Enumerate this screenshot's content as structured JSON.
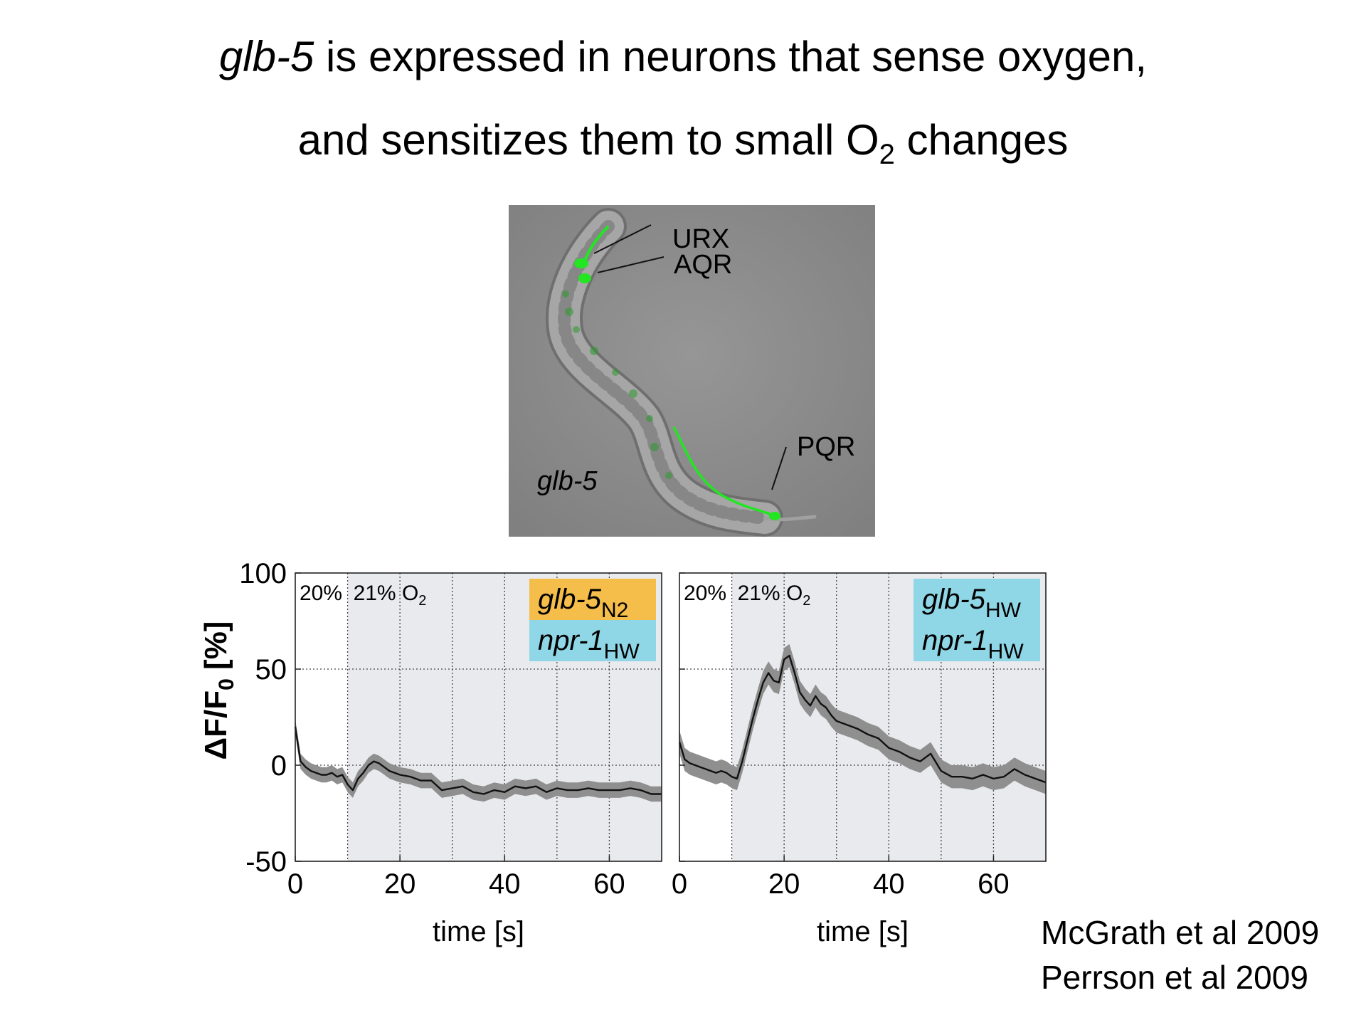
{
  "title": {
    "line1_italic": "glb-5",
    "line1_rest": " is expressed in neurons that sense oxygen,",
    "line2_a": "and sensitizes them to small O",
    "line2_sub": "2",
    "line2_b": " changes"
  },
  "micrograph": {
    "labels": {
      "urx": "URX",
      "aqr": "AQR",
      "pqr": "PQR",
      "gene": "glb-5"
    }
  },
  "references": [
    "McGrath et al 2009",
    "Perrson et al 2009"
  ],
  "colors": {
    "panel_bg": "#e9eaed",
    "trace": "#111111",
    "band": "#8f8f8f",
    "orange_box": "#f5bd4a",
    "blue_box": "#8fd6e6",
    "gfp": "#22e622",
    "micro_bg": "#8b8b8b"
  },
  "chart_data": [
    {
      "type": "line",
      "xlabel": "time [s]",
      "ylabel": "ΔF/F0 [%]",
      "ylabel_parts": {
        "a": "ΔF/F",
        "sub": "0",
        "b": " [%]"
      },
      "xlim": [
        0,
        70
      ],
      "ylim": [
        -50,
        100
      ],
      "xticks": [
        0,
        20,
        40,
        60
      ],
      "yticks": [
        -50,
        0,
        50,
        100
      ],
      "shaded_from_x": 10,
      "condition_labels": {
        "a": "20%",
        "b": "21% O",
        "b_sub": "2"
      },
      "legend": [
        {
          "text": "glb-5",
          "sub": "N2",
          "color": "#f5bd4a"
        },
        {
          "text": "npr-1",
          "sub": "HW",
          "color": "#8fd6e6"
        }
      ],
      "series": [
        {
          "x": [
            0,
            1,
            2,
            3,
            4,
            5,
            6,
            7,
            8,
            9,
            10,
            11,
            12,
            13,
            14,
            15,
            16,
            17,
            18,
            19,
            20,
            22,
            24,
            26,
            28,
            30,
            32,
            34,
            36,
            38,
            40,
            42,
            44,
            46,
            48,
            50,
            52,
            54,
            56,
            58,
            60,
            62,
            64,
            66,
            68,
            70
          ],
          "y": [
            20,
            2,
            -1,
            -3,
            -4,
            -5,
            -5,
            -4,
            -6,
            -5,
            -10,
            -13,
            -7,
            -4,
            0,
            2,
            1,
            -1,
            -3,
            -4,
            -5,
            -6,
            -8,
            -8,
            -13,
            -12,
            -11,
            -14,
            -15,
            -13,
            -14,
            -11,
            -12,
            -11,
            -14,
            -12,
            -13,
            -13,
            -12,
            -13,
            -13,
            -13,
            -12,
            -13,
            -15,
            -15
          ],
          "err": 4
        }
      ]
    },
    {
      "type": "line",
      "xlabel": "time [s]",
      "xlim": [
        0,
        70
      ],
      "ylim": [
        -50,
        100
      ],
      "xticks": [
        0,
        20,
        40,
        60
      ],
      "yticks": [
        -50,
        0,
        50,
        100
      ],
      "shaded_from_x": 10,
      "condition_labels": {
        "a": "20%",
        "b": "21% O",
        "b_sub": "2"
      },
      "legend": [
        {
          "text": "glb-5",
          "sub": "HW",
          "color": "#8fd6e6"
        },
        {
          "text": "npr-1",
          "sub": "HW",
          "color": "#8fd6e6"
        }
      ],
      "series": [
        {
          "x": [
            0,
            1,
            2,
            3,
            4,
            5,
            6,
            7,
            8,
            9,
            10,
            11,
            12,
            13,
            14,
            15,
            16,
            17,
            18,
            19,
            20,
            21,
            22,
            23,
            24,
            25,
            26,
            27,
            28,
            29,
            30,
            32,
            34,
            36,
            38,
            40,
            42,
            44,
            46,
            48,
            50,
            52,
            54,
            56,
            58,
            60,
            62,
            64,
            66,
            68,
            70
          ],
          "y": [
            12,
            3,
            1,
            0,
            -1,
            -2,
            -3,
            -4,
            -3,
            -4,
            -6,
            -7,
            2,
            13,
            24,
            34,
            43,
            48,
            44,
            43,
            55,
            57,
            48,
            38,
            34,
            31,
            36,
            32,
            30,
            26,
            23,
            21,
            19,
            16,
            14,
            9,
            7,
            4,
            2,
            6,
            -3,
            -6,
            -6,
            -7,
            -5,
            -7,
            -6,
            -2,
            -5,
            -7,
            -9
          ],
          "err": 6
        }
      ]
    }
  ]
}
